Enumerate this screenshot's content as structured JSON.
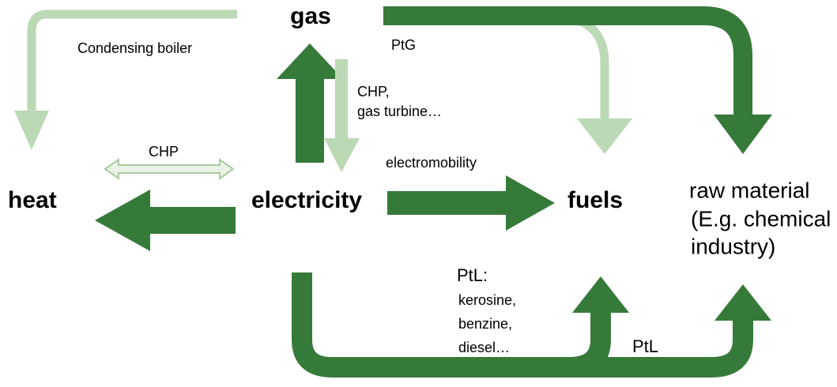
{
  "nodes": [
    {
      "label": "gas"
    },
    {
      "label": "heat"
    },
    {
      "label": "electricity"
    },
    {
      "label": "fuels"
    },
    {
      "label": "raw material",
      "note_lines": [
        "(E.g. chemical",
        "industry)"
      ]
    }
  ],
  "edge_labels": {
    "condensing_boiler": "Condensing boiler",
    "ptg": "PtG",
    "chp_gas_turbine": [
      "CHP,",
      "gas turbine…"
    ],
    "chp": "CHP",
    "electromobility": "electromobility",
    "ptl_fuels": [
      "PtL:",
      "kerosine,",
      "benzine,",
      "diesel…"
    ],
    "ptl_raw": "PtL"
  }
}
